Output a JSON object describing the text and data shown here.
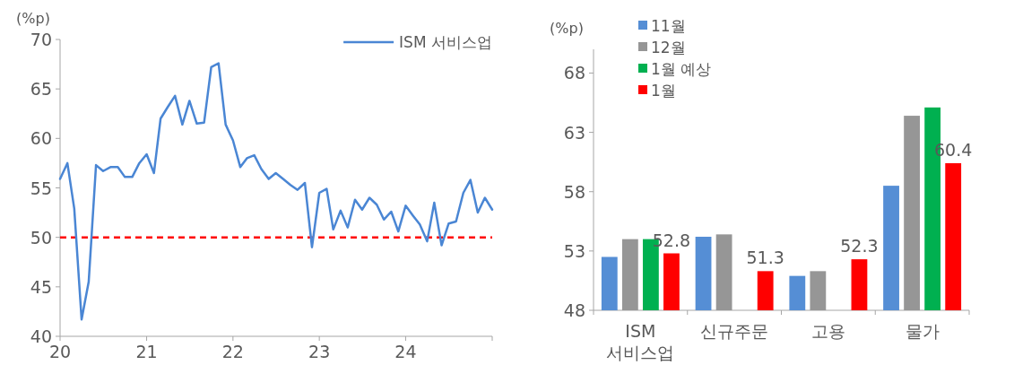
{
  "chart_data": [
    {
      "type": "line",
      "ylabel": "(%p)",
      "x": [
        "2020-01",
        "2020-02",
        "2020-03",
        "2020-04",
        "2020-05",
        "2020-06",
        "2020-07",
        "2020-08",
        "2020-09",
        "2020-10",
        "2020-11",
        "2020-12",
        "2021-01",
        "2021-02",
        "2021-03",
        "2021-04",
        "2021-05",
        "2021-06",
        "2021-07",
        "2021-08",
        "2021-09",
        "2021-10",
        "2021-11",
        "2021-12",
        "2022-01",
        "2022-02",
        "2022-03",
        "2022-04",
        "2022-05",
        "2022-06",
        "2022-07",
        "2022-08",
        "2022-09",
        "2022-10",
        "2022-11",
        "2022-12",
        "2023-01",
        "2023-02",
        "2023-03",
        "2023-04",
        "2023-05",
        "2023-06",
        "2023-07",
        "2023-08",
        "2023-09",
        "2023-10",
        "2023-11",
        "2023-12",
        "2024-01",
        "2024-02",
        "2024-03",
        "2024-04",
        "2024-05",
        "2024-06",
        "2024-07",
        "2024-08",
        "2024-09",
        "2024-10",
        "2024-11",
        "2024-12",
        "2025-01"
      ],
      "series": [
        {
          "name": "ISM 서비스업",
          "color": "#4a86d4",
          "values": [
            55.9,
            57.5,
            52.9,
            41.7,
            45.5,
            57.3,
            56.7,
            57.1,
            57.1,
            56.1,
            56.1,
            57.5,
            58.4,
            56.5,
            62.0,
            63.2,
            64.3,
            61.4,
            63.8,
            61.5,
            61.6,
            67.2,
            67.6,
            61.4,
            59.8,
            57.1,
            58.0,
            58.3,
            56.9,
            55.9,
            56.5,
            55.9,
            55.3,
            54.8,
            55.5,
            49.0,
            54.5,
            54.9,
            50.8,
            52.7,
            51.0,
            53.8,
            52.8,
            54.0,
            53.3,
            51.8,
            52.6,
            50.6,
            53.2,
            52.2,
            51.3,
            49.6,
            53.5,
            49.2,
            51.4,
            51.6,
            54.5,
            55.8,
            52.5,
            54.0,
            52.8
          ]
        }
      ],
      "xlim": [
        "2020-01",
        "2025-01"
      ],
      "xticks": [
        {
          "value": "2020-01",
          "label": "20"
        },
        {
          "value": "2021-01",
          "label": "21"
        },
        {
          "value": "2022-01",
          "label": "22"
        },
        {
          "value": "2023-01",
          "label": "23"
        },
        {
          "value": "2024-01",
          "label": "24"
        },
        {
          "value": "2025-01",
          "label": null
        }
      ],
      "ylim": [
        40,
        70
      ],
      "yticks": [
        40,
        45,
        50,
        55,
        60,
        65,
        70
      ],
      "ref_lines": [
        {
          "axis": "y",
          "value": 50,
          "color": "#ff0000",
          "line_style": "dashed"
        }
      ],
      "line_style": "solid",
      "legend": "top right",
      "grid": false
    },
    {
      "type": "bar",
      "ylabel": "(%p)",
      "categories": [
        "ISM 서비스업",
        "신규주문",
        "고용",
        "물가"
      ],
      "series": [
        {
          "name": "11월",
          "color": "#558ed5",
          "values": [
            52.5,
            54.2,
            50.9,
            58.5
          ]
        },
        {
          "name": "12월",
          "color": "#969696",
          "values": [
            54.0,
            54.4,
            51.3,
            64.4
          ]
        },
        {
          "name": "1월 예상",
          "color": "#00b050",
          "values": [
            54.0,
            null,
            null,
            65.1
          ]
        },
        {
          "name": "1월",
          "color": "#ff0000",
          "values": [
            52.8,
            51.3,
            52.3,
            60.4
          ],
          "value_labels": [
            "52.8",
            "51.3",
            "52.3",
            "60.4"
          ]
        }
      ],
      "ylim": [
        48,
        70
      ],
      "yticks": [
        48,
        53,
        58,
        63,
        68
      ],
      "legend": "top left",
      "grid": false
    }
  ]
}
